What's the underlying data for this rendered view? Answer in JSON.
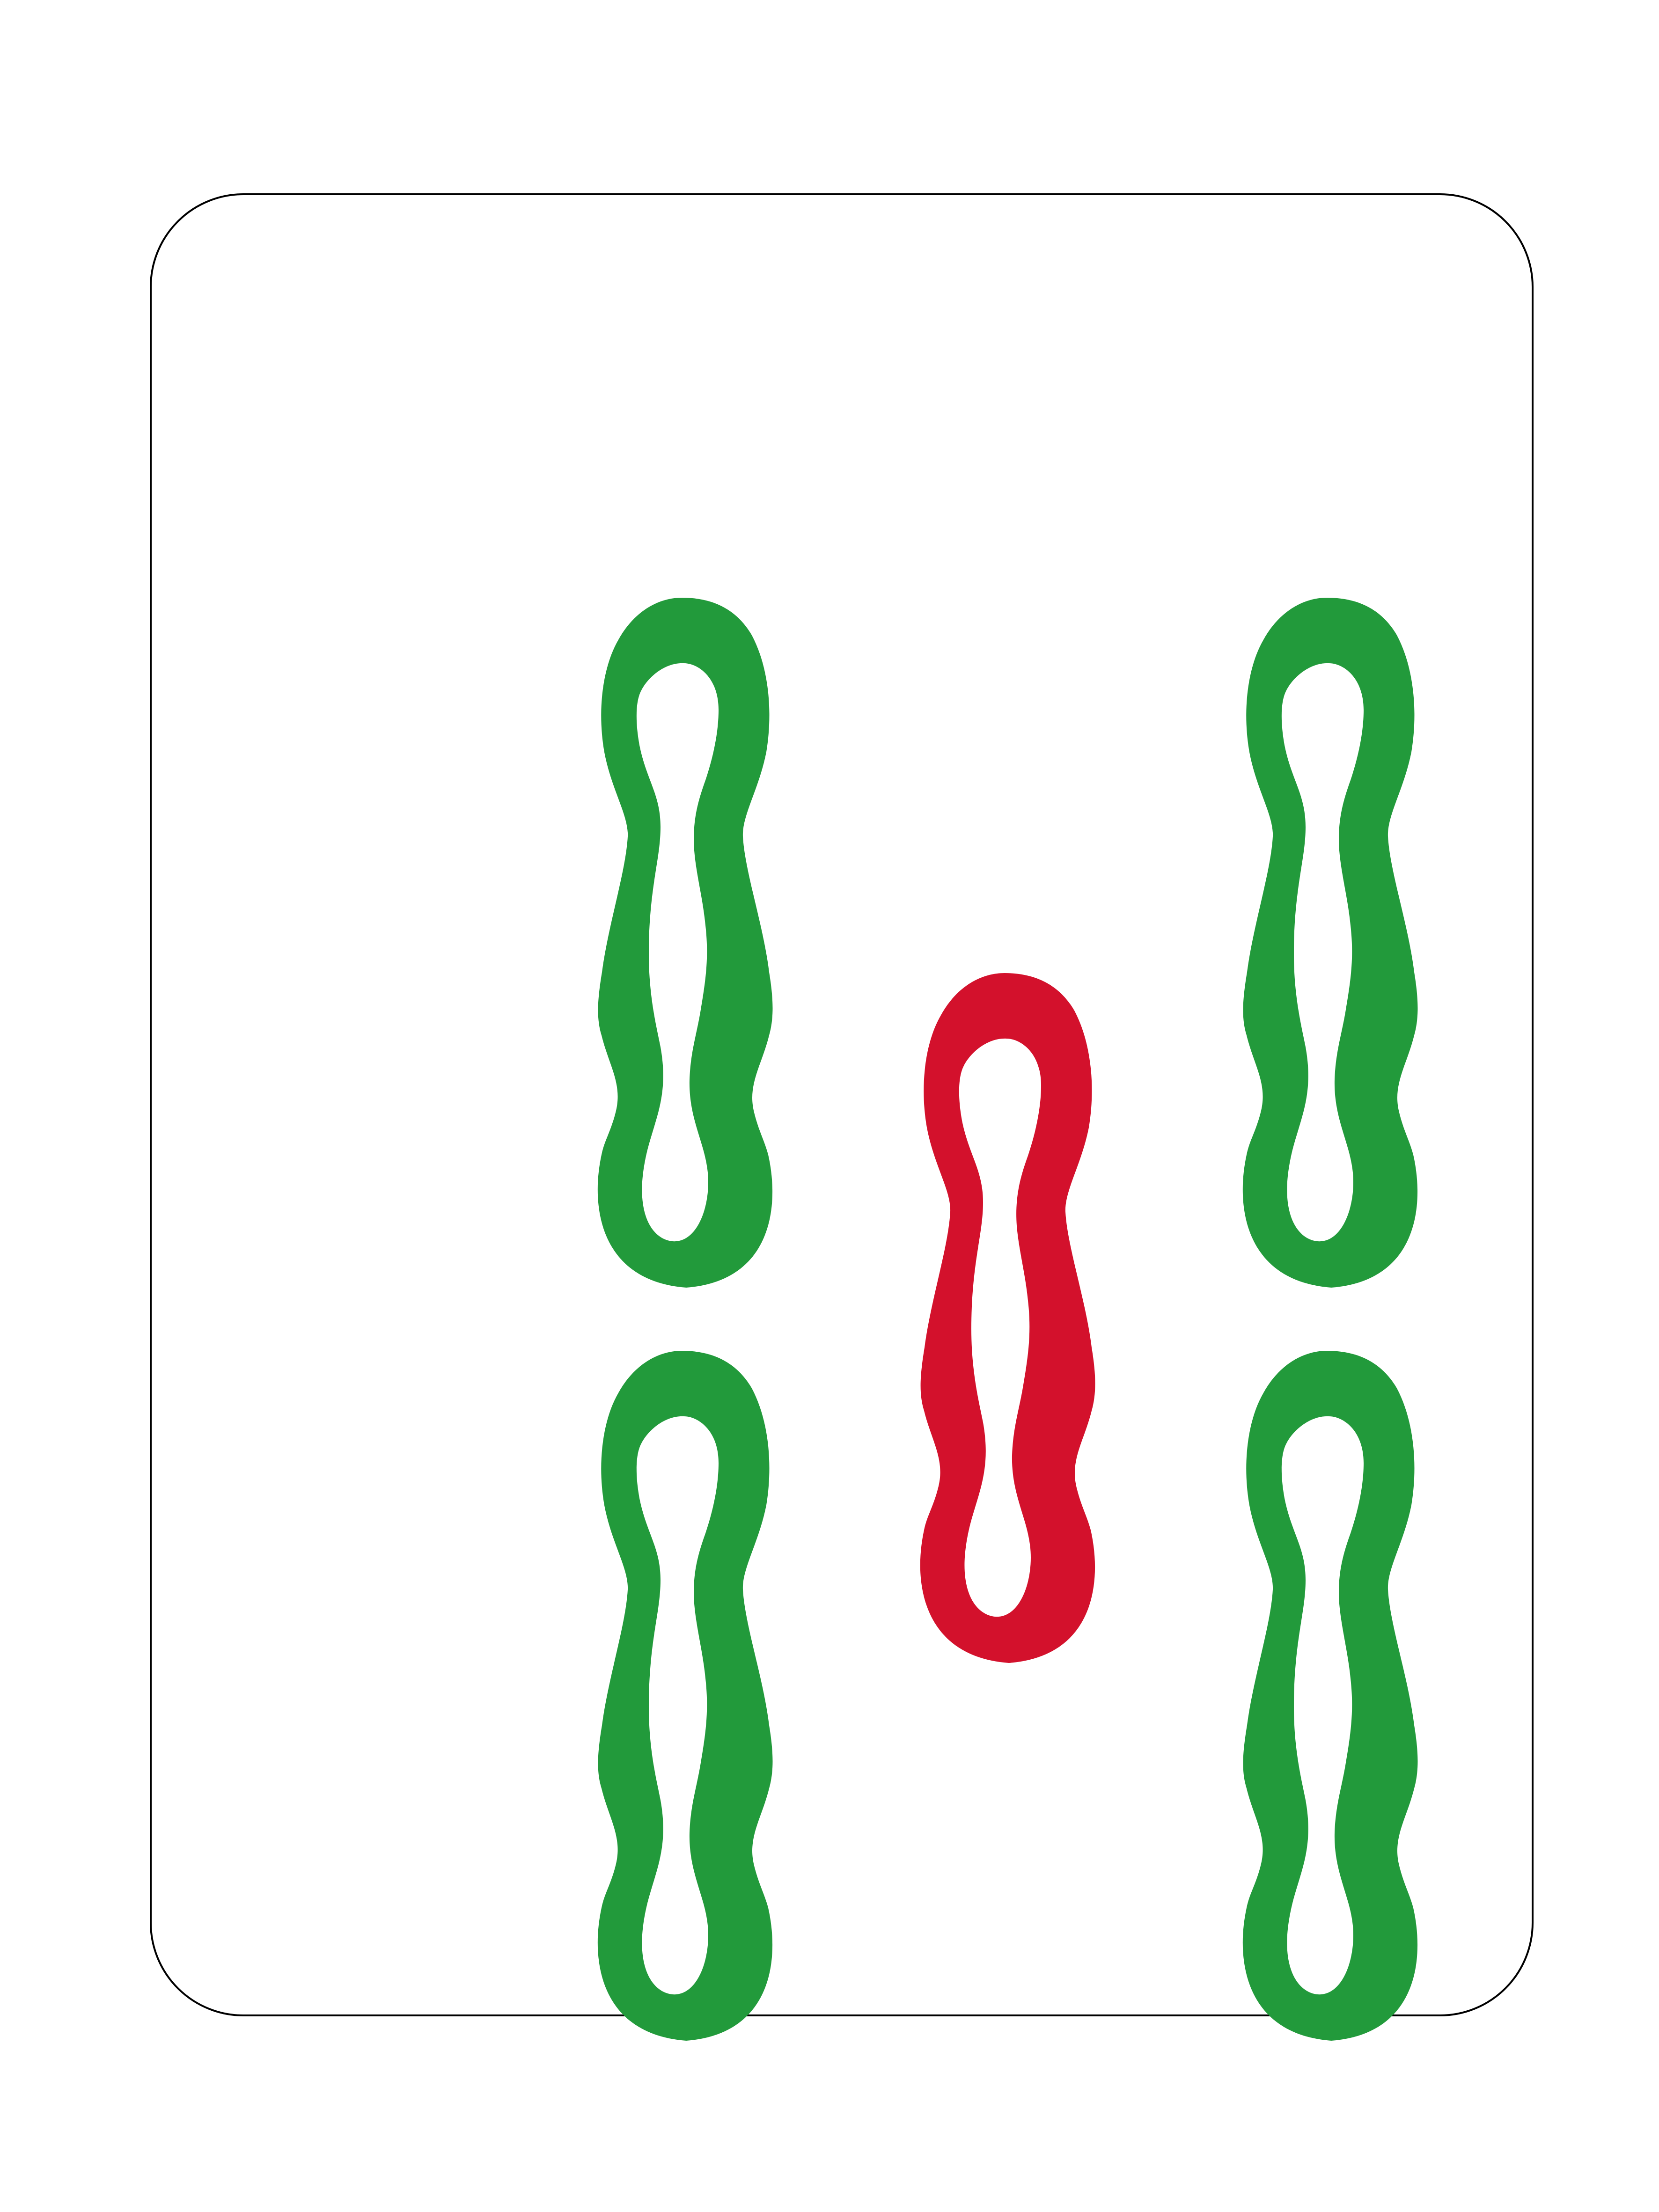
{
  "tile": {
    "suit": "bamboo",
    "rank": 5,
    "background_color": "#ffffff",
    "border_color": "#000000"
  },
  "colors": {
    "green": "#229a3b",
    "red": "#d3112c"
  },
  "sticks": [
    {
      "id": "stick-top-left",
      "color": "green",
      "icon": "bamboo-stick-icon"
    },
    {
      "id": "stick-top-right",
      "color": "green",
      "icon": "bamboo-stick-icon"
    },
    {
      "id": "stick-center",
      "color": "red",
      "icon": "bamboo-stick-icon"
    },
    {
      "id": "stick-bottom-left",
      "color": "green",
      "icon": "bamboo-stick-icon"
    },
    {
      "id": "stick-bottom-right",
      "color": "green",
      "icon": "bamboo-stick-icon"
    }
  ]
}
